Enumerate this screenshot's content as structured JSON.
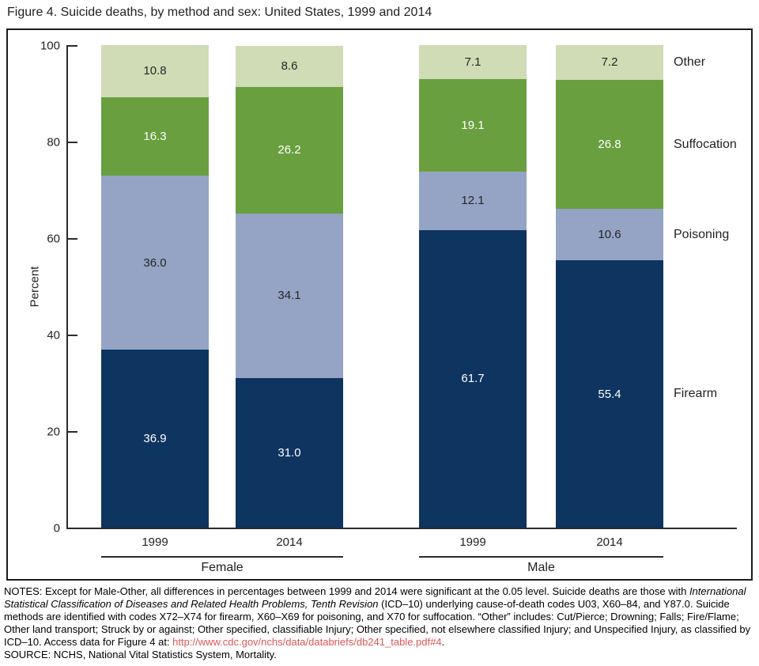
{
  "title": "Figure 4. Suicide deaths, by method and sex: United States, 1999 and 2014",
  "chart_data": {
    "type": "bar",
    "stacked": true,
    "ylabel": "Percent",
    "ylim": [
      0,
      100
    ],
    "yticks": [
      0,
      20,
      40,
      60,
      80,
      100
    ],
    "grid": false,
    "legend_position": "right-side-labels",
    "categories": [
      "1999",
      "2014",
      "1999",
      "2014"
    ],
    "groups": [
      {
        "label": "Female",
        "bars": [
          0,
          1
        ]
      },
      {
        "label": "Male",
        "bars": [
          2,
          3
        ]
      }
    ],
    "series": [
      {
        "name": "Firearm",
        "color": "#0e3460",
        "label_color": "#ffffff",
        "values": [
          36.9,
          31.0,
          61.7,
          55.4
        ]
      },
      {
        "name": "Poisoning",
        "color": "#95a4c4",
        "label_color": "#262626",
        "values": [
          36.0,
          34.1,
          12.1,
          10.6
        ]
      },
      {
        "name": "Suffocation",
        "color": "#699f3e",
        "label_color": "#ffffff",
        "values": [
          16.3,
          26.2,
          19.1,
          26.8
        ]
      },
      {
        "name": "Other",
        "color": "#cfdcb5",
        "label_color": "#262626",
        "values": [
          10.8,
          8.6,
          7.1,
          7.2
        ]
      }
    ]
  },
  "notes": {
    "link_color": "#e05656",
    "segments": [
      {
        "style": "normal",
        "text": "NOTES: Except for Male-Other, all differences in percentages between 1999 and 2014 were significant at the 0.05 level. Suicide deaths are those with "
      },
      {
        "style": "italic",
        "text": "International Statistical Classification of Diseases and Related Health Problems, Tenth Revision"
      },
      {
        "style": "normal",
        "text": " (ICD–10) underlying cause-of-death codes U03, X60–84, and Y87.0. Suicide methods are identified with codes X72–X74 for firearm, X60–X69 for poisoning, and X70 for suffocation. “Other” includes: Cut/Pierce; Drowning; Falls; Fire/Flame; Other land transport; Struck by or against; Other specified, classifiable Injury; Other specified, not elsewhere classified Injury; and Unspecified Injury, as classified by ICD–10. Access data for Figure 4 at: "
      },
      {
        "style": "link",
        "text": "http://www.cdc.gov/nchs/data/databriefs/db241_table.pdf#4"
      },
      {
        "style": "normal",
        "text": "."
      }
    ],
    "source": "SOURCE: NCHS, National Vital Statistics System, Mortality."
  }
}
